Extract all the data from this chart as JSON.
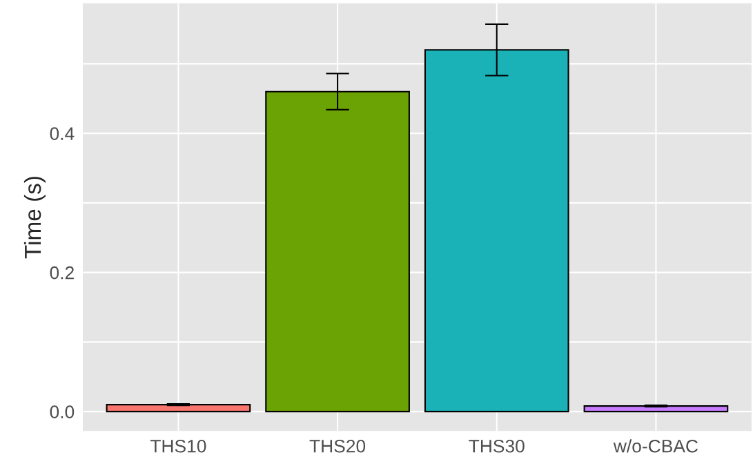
{
  "chart_data": {
    "type": "bar",
    "ylabel": "Time (s)",
    "categories": [
      "THS10",
      "THS20",
      "THS30",
      "w/o-CBAC"
    ],
    "values": [
      0.01,
      0.46,
      0.52,
      0.008
    ],
    "errors": [
      0.001,
      0.026,
      0.037,
      0.001
    ],
    "colors": [
      "#f8766d",
      "#6ba305",
      "#1ab2b7",
      "#c77cff"
    ],
    "ylim": [
      -0.028,
      0.587
    ],
    "yticks": [
      {
        "value": 0,
        "label": "0.0"
      },
      0.2,
      0.4,
      {
        "value": 0.1,
        "label": null
      },
      {
        "value": 0.3,
        "label": null
      },
      {
        "value": 0.5,
        "label": null
      }
    ],
    "grid": true,
    "legend": false
  }
}
